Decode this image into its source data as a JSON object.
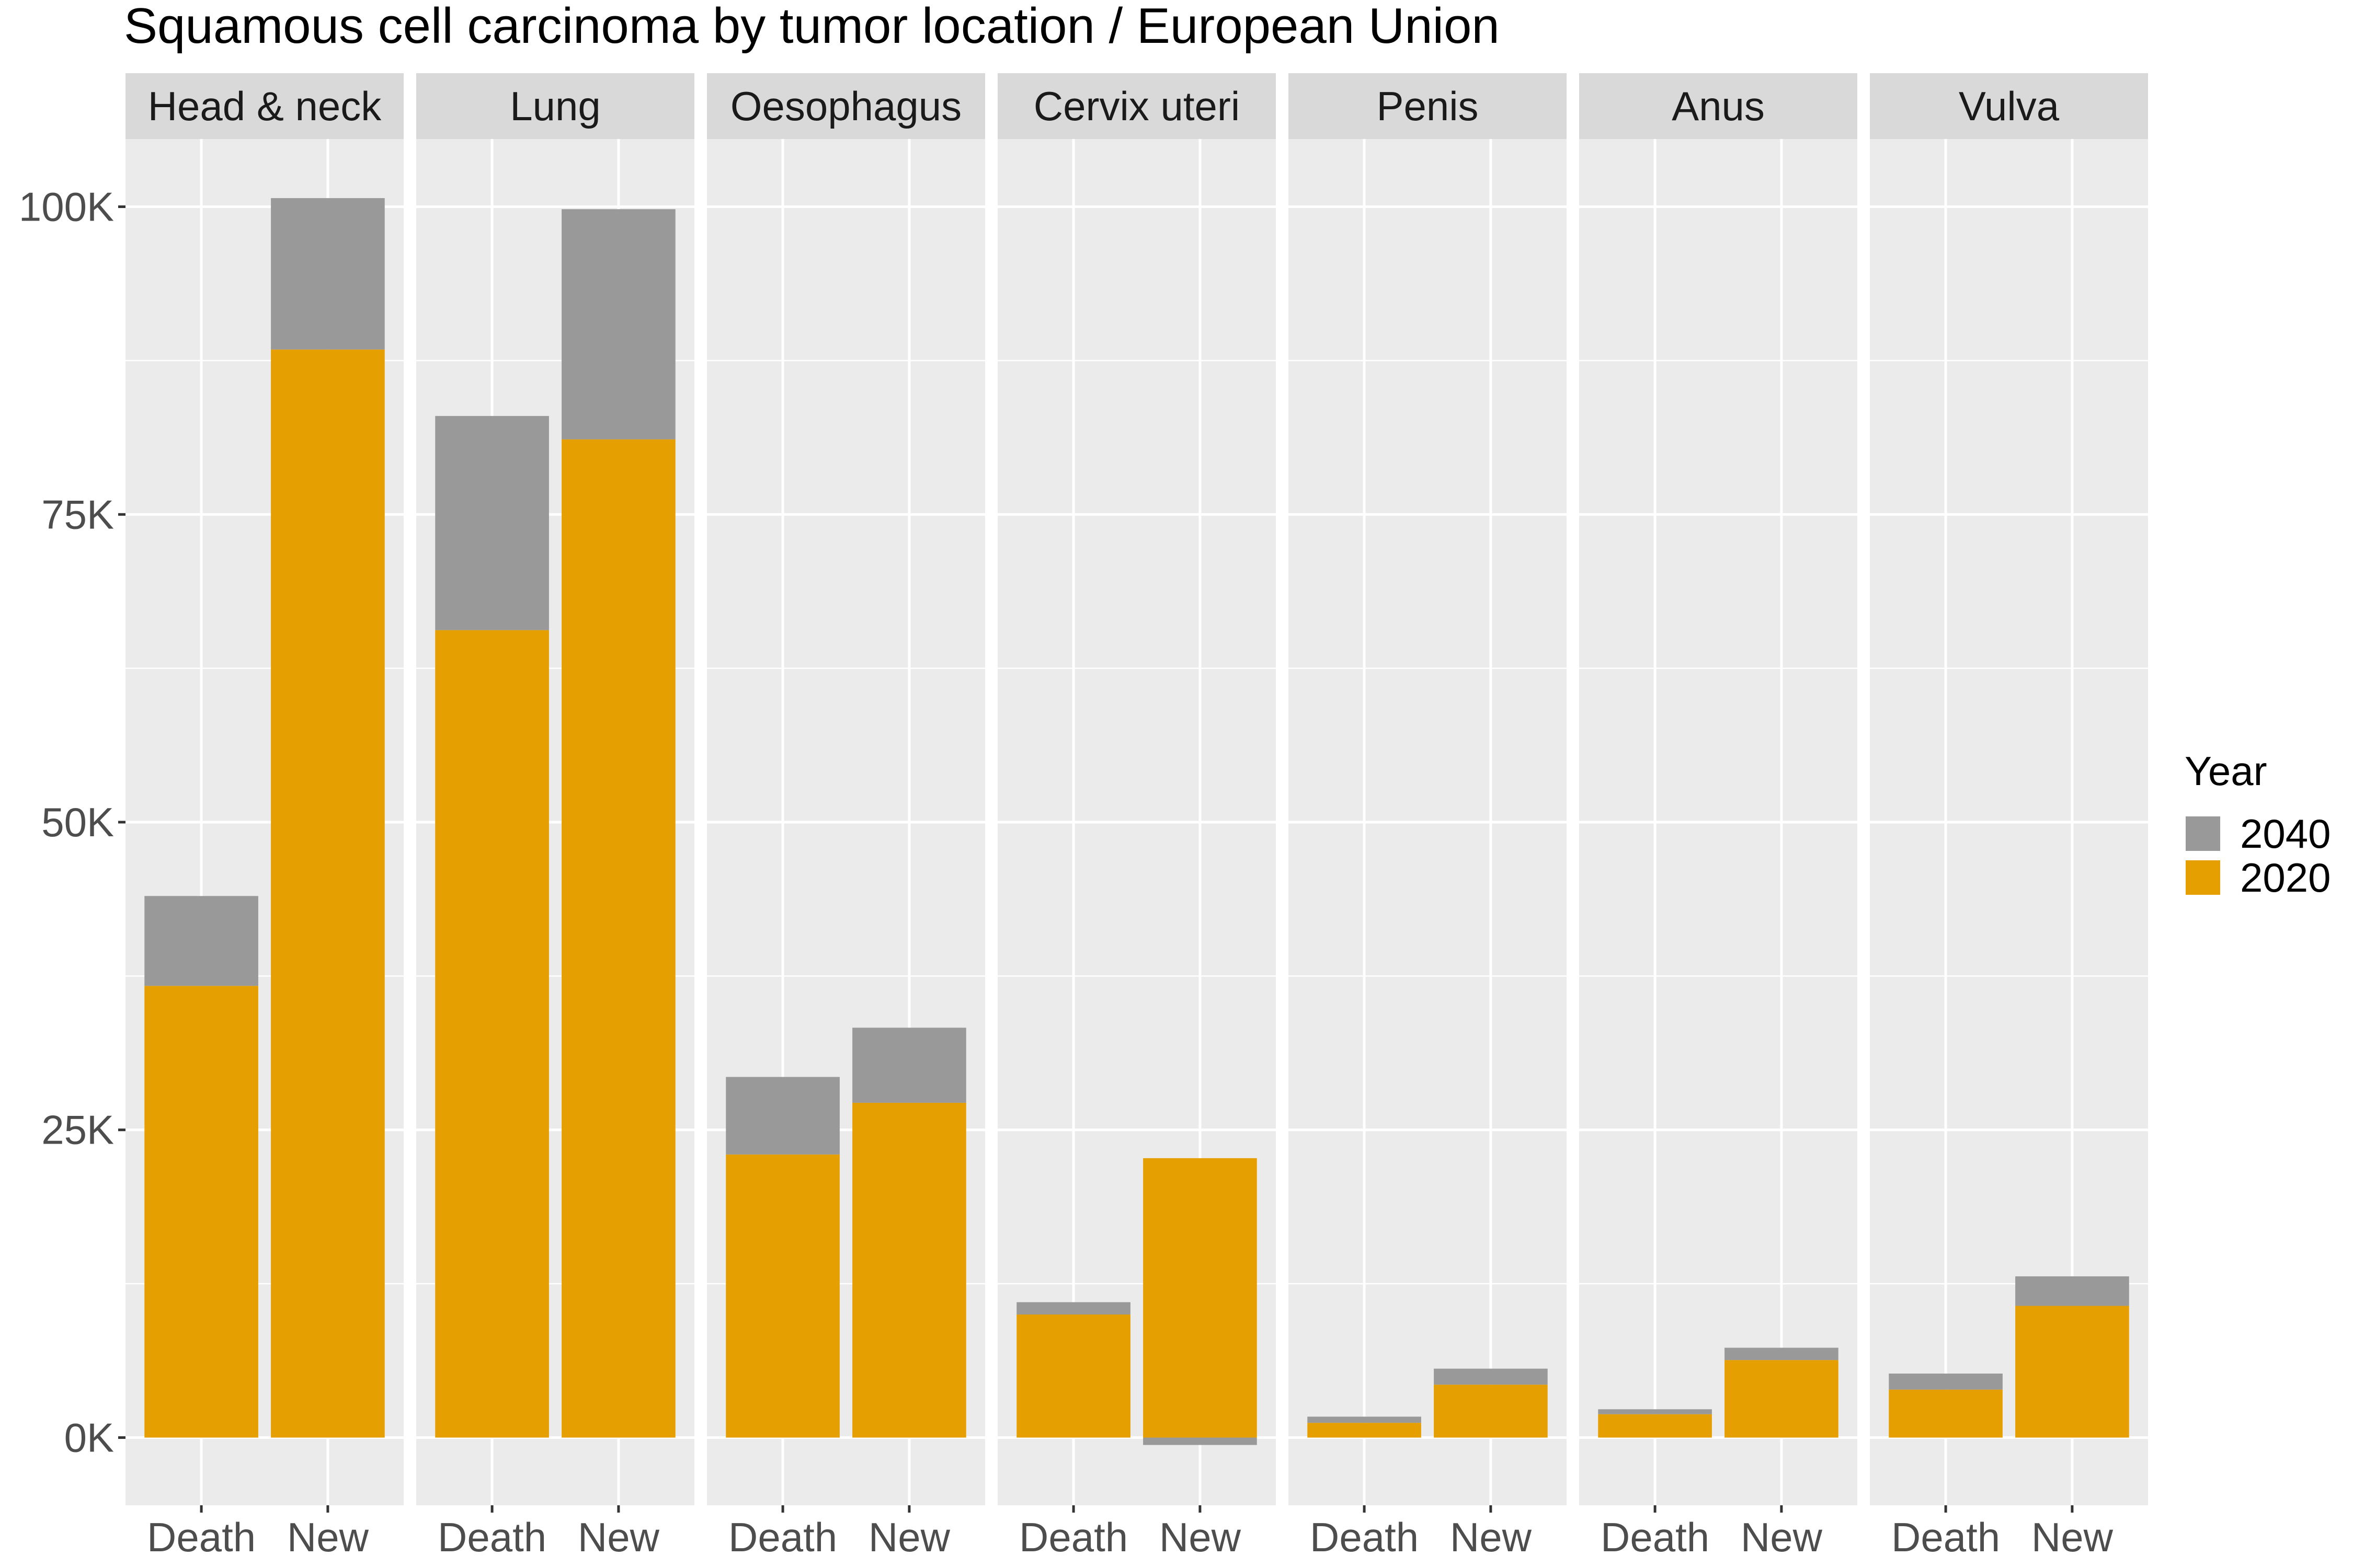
{
  "chart_data": {
    "type": "bar",
    "title": "Squamous cell carcinoma  by tumor location / European Union",
    "xlabel": "",
    "ylabel": "",
    "ylim": [
      -5500,
      105500
    ],
    "y_ticks": [
      0,
      25000,
      50000,
      75000,
      100000
    ],
    "y_tick_labels": [
      "0K",
      "25K",
      "50K",
      "75K",
      "100K"
    ],
    "grid": true,
    "stacked": true,
    "categories": [
      "Death",
      "New"
    ],
    "facets": [
      "Head & neck",
      "Lung",
      "Oesophagus",
      "Cervix uteri",
      "Penis",
      "Anus",
      "Vulva"
    ],
    "series": [
      {
        "name": "2020",
        "color": "#E69F00",
        "values": [
          [
            36700,
            88400
          ],
          [
            65600,
            81100
          ],
          [
            23000,
            27200
          ],
          [
            10000,
            22700
          ],
          [
            1200,
            4300
          ],
          [
            1900,
            6300
          ],
          [
            3900,
            10700
          ]
        ]
      },
      {
        "name": "2040",
        "color": "#999999",
        "values": [
          [
            7300,
            12300
          ],
          [
            17400,
            18700
          ],
          [
            6300,
            6100
          ],
          [
            1000,
            -600
          ],
          [
            500,
            1300
          ],
          [
            400,
            1000
          ],
          [
            1300,
            2400
          ]
        ]
      }
    ],
    "legend": {
      "title": "Year",
      "position": "right",
      "entries": [
        "2040",
        "2020"
      ]
    }
  }
}
